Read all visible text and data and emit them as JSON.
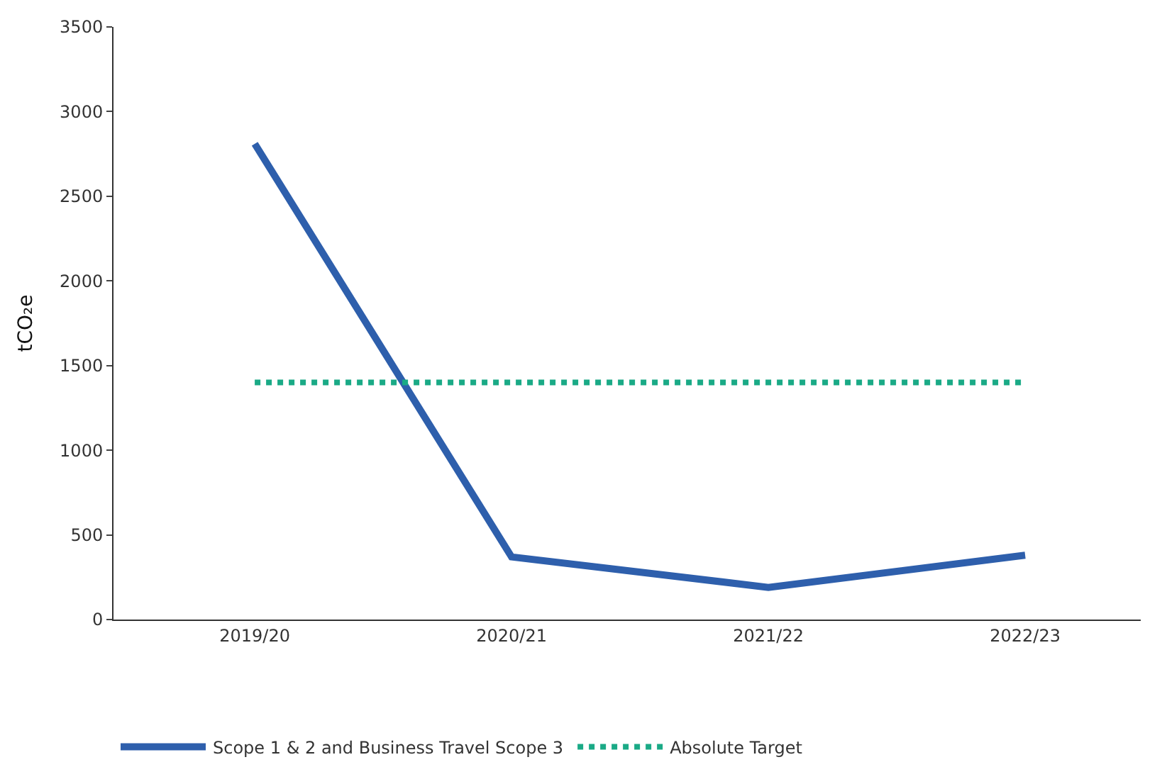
{
  "chart_data": {
    "type": "line",
    "ylabel": "tCO₂e",
    "categories": [
      "2019/20",
      "2020/21",
      "2021/22",
      "2022/23"
    ],
    "series": [
      {
        "name": "Scope 1 & 2 and Business Travel Scope 3",
        "color": "#2e5fac",
        "values": [
          2810,
          370,
          190,
          380
        ],
        "line_style": "solid"
      },
      {
        "name": "Absolute Target",
        "color": "#1aaa86",
        "values": [
          1400,
          1400,
          1400,
          1400
        ],
        "line_style": "dotted"
      }
    ],
    "ylim": [
      0,
      3500
    ],
    "yticks": [
      0,
      500,
      1000,
      1500,
      2000,
      2500,
      3000,
      3500
    ],
    "legend": "bottom",
    "marker": "none"
  }
}
